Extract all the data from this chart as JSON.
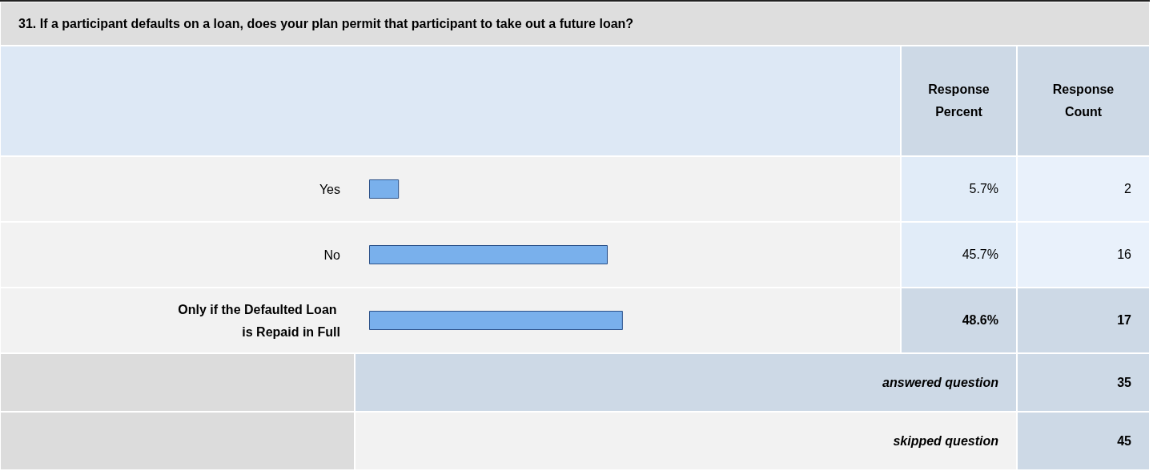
{
  "chart_data": {
    "type": "bar",
    "orientation": "horizontal",
    "title": "31. If a participant defaults on a loan, does your plan permit that participant to take out a future loan?",
    "categories": [
      "Yes",
      "No",
      "Only if the Defaulted Loan is Repaid in Full"
    ],
    "values": [
      5.7,
      45.7,
      48.6
    ],
    "value_labels": [
      "5.7%",
      "45.7%",
      "48.6%"
    ],
    "color": "#79b0ec",
    "tick_labels": "y",
    "grid": false,
    "annotations": [
      "Response Percent",
      "Response Count",
      "2",
      "16",
      "17",
      "answered question",
      "35",
      "skipped question",
      "45"
    ]
  }
}
